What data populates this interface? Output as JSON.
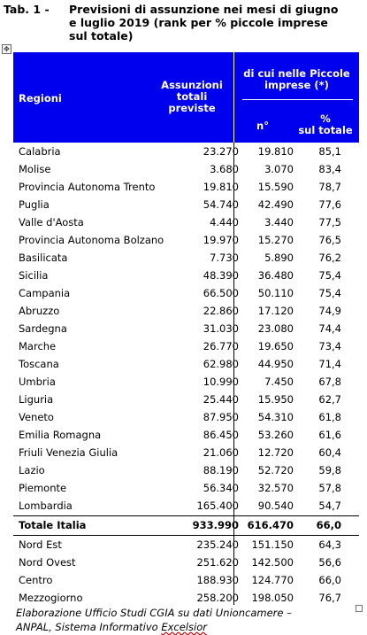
{
  "title": {
    "label": "Tab. 1 -",
    "line1": "Previsioni di assunzione nei mesi di giugno",
    "line2": "e luglio  2019  (rank per % piccole imprese",
    "line3": "sul totale)"
  },
  "header": {
    "regioni": "Regioni",
    "assunzioni_l1": "Assunzioni",
    "assunzioni_l2": "totali",
    "assunzioni_l3": "previste",
    "piccole_l1": "di cui nelle Piccole",
    "piccole_l2": "imprese (*)",
    "n": "n°",
    "pct_l1": "%",
    "pct_l2": "sul totale"
  },
  "rows": [
    {
      "regione": "Calabria",
      "assunzioni": "23.270",
      "piccole_n": "19.810",
      "pct": "85,1"
    },
    {
      "regione": "Molise",
      "assunzioni": "3.680",
      "piccole_n": "3.070",
      "pct": "83,4"
    },
    {
      "regione": "Provincia Autonoma Trento",
      "assunzioni": "19.810",
      "piccole_n": "15.590",
      "pct": "78,7"
    },
    {
      "regione": "Puglia",
      "assunzioni": "54.740",
      "piccole_n": "42.490",
      "pct": "77,6"
    },
    {
      "regione": "Valle d'Aosta",
      "assunzioni": "4.440",
      "piccole_n": "3.440",
      "pct": "77,5"
    },
    {
      "regione": "Provincia Autonoma Bolzano",
      "assunzioni": "19.970",
      "piccole_n": "15.270",
      "pct": "76,5"
    },
    {
      "regione": "Basilicata",
      "assunzioni": "7.730",
      "piccole_n": "5.890",
      "pct": "76,2"
    },
    {
      "regione": "Sicilia",
      "assunzioni": "48.390",
      "piccole_n": "36.480",
      "pct": "75,4"
    },
    {
      "regione": "Campania",
      "assunzioni": "66.500",
      "piccole_n": "50.110",
      "pct": "75,4"
    },
    {
      "regione": "Abruzzo",
      "assunzioni": "22.860",
      "piccole_n": "17.120",
      "pct": "74,9"
    },
    {
      "regione": "Sardegna",
      "assunzioni": "31.030",
      "piccole_n": "23.080",
      "pct": "74,4"
    },
    {
      "regione": "Marche",
      "assunzioni": "26.770",
      "piccole_n": "19.650",
      "pct": "73,4"
    },
    {
      "regione": "Toscana",
      "assunzioni": "62.980",
      "piccole_n": "44.950",
      "pct": "71,4"
    },
    {
      "regione": "Umbria",
      "assunzioni": "10.990",
      "piccole_n": "7.450",
      "pct": "67,8"
    },
    {
      "regione": "Liguria",
      "assunzioni": "25.440",
      "piccole_n": "15.950",
      "pct": "62,7"
    },
    {
      "regione": "Veneto",
      "assunzioni": "87.950",
      "piccole_n": "54.310",
      "pct": "61,8"
    },
    {
      "regione": "Emilia Romagna",
      "assunzioni": "86.450",
      "piccole_n": "53.260",
      "pct": "61,6"
    },
    {
      "regione": "Friuli Venezia Giulia",
      "assunzioni": "21.060",
      "piccole_n": "12.720",
      "pct": "60,4"
    },
    {
      "regione": "Lazio",
      "assunzioni": "88.190",
      "piccole_n": "52.720",
      "pct": "59,8"
    },
    {
      "regione": "Piemonte",
      "assunzioni": "56.340",
      "piccole_n": "32.570",
      "pct": "57,8"
    },
    {
      "regione": "Lombardia",
      "assunzioni": "165.400",
      "piccole_n": "90.540",
      "pct": "54,7"
    }
  ],
  "total": {
    "regione": "Totale Italia",
    "assunzioni": "933.990",
    "piccole_n": "616.470",
    "pct": "66,0"
  },
  "areas": [
    {
      "regione": "Nord Est",
      "assunzioni": "235.240",
      "piccole_n": "151.150",
      "pct": "64,3"
    },
    {
      "regione": "Nord Ovest",
      "assunzioni": "251.620",
      "piccole_n": "142.500",
      "pct": "56,6"
    },
    {
      "regione": "Centro",
      "assunzioni": "188.930",
      "piccole_n": "124.770",
      "pct": "66,0"
    },
    {
      "regione": "Mezzogiorno",
      "assunzioni": "258.200",
      "piccole_n": "198.050",
      "pct": "76,7"
    }
  ],
  "footer": {
    "line1": "Elaborazione Ufficio Studi  CGIA su dati Unioncamere –",
    "line2_a": "ANPAL, Sistema Informativo ",
    "line2_b": "Excelsior"
  },
  "icons": {
    "anchor": "move-anchor-icon"
  },
  "colors": {
    "header_bg": "#0000ee",
    "header_text": "#ffffff"
  }
}
